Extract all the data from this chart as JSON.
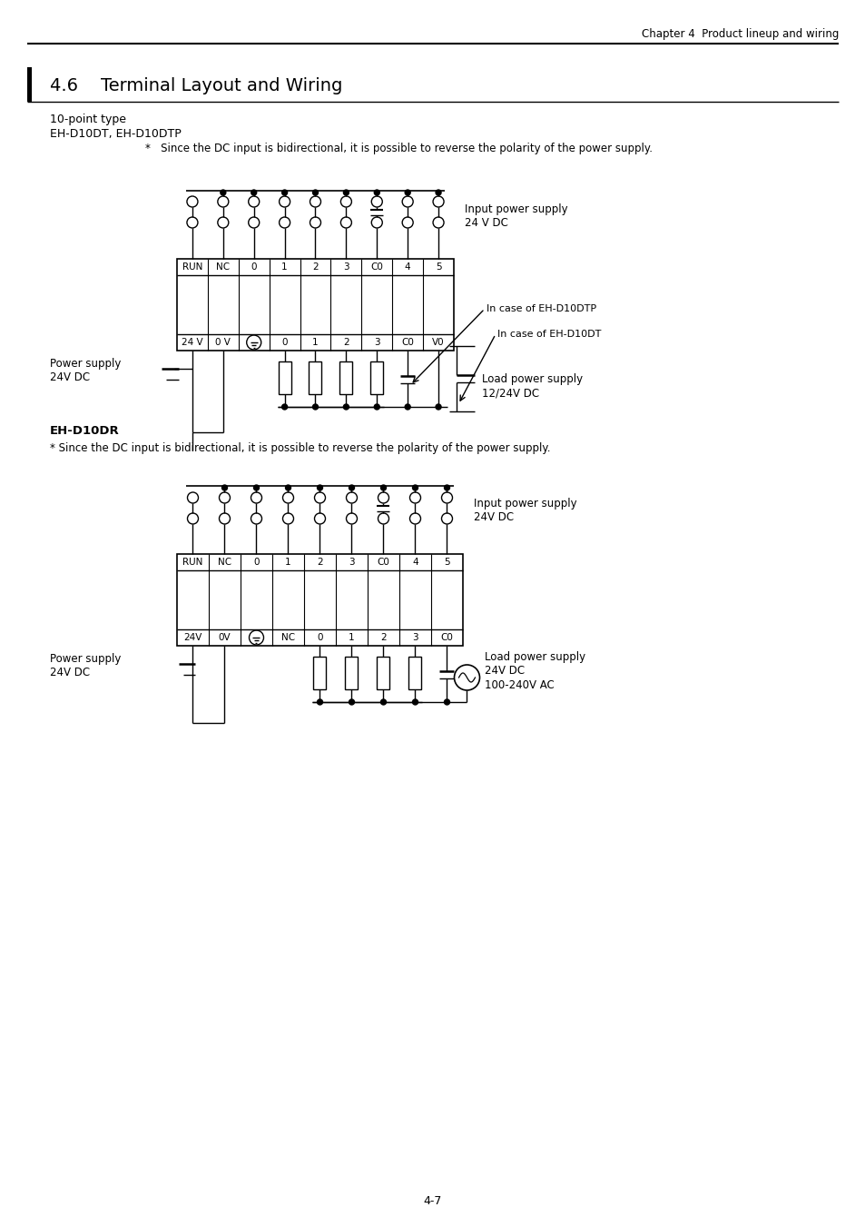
{
  "page_header": "Chapter 4  Product lineup and wiring",
  "section_title": "4.6    Terminal Layout and Wiring",
  "subsection1_title": "10-point type",
  "subsection1_model": "EH-D10DT, EH-D10DTP",
  "subsection1_note": "*   Since the DC input is bidirectional, it is possible to reverse the polarity of the power supply.",
  "diagram1_top_labels": [
    "RUN",
    "NC",
    "0",
    "1",
    "2",
    "3",
    "C0",
    "4",
    "5"
  ],
  "diagram1_bot_labels": [
    "24 V",
    "0 V",
    "",
    "0",
    "1",
    "2",
    "3",
    "C0",
    "V0"
  ],
  "diagram1_input_label": "Input power supply\n24 V DC",
  "diagram1_incase_dtp": "In case of EH-D10DTP",
  "diagram1_incase_dt": "In case of EH-D10DT",
  "diagram1_power_label": "Power supply\n24V DC",
  "diagram1_load_label": "Load power supply\n12/24V DC",
  "subsection2_title": "EH-D10DR",
  "subsection2_note": "* Since the DC input is bidirectional, it is possible to reverse the polarity of the power supply.",
  "diagram2_top_labels": [
    "RUN",
    "NC",
    "0",
    "1",
    "2",
    "3",
    "C0",
    "4",
    "5"
  ],
  "diagram2_bot_labels": [
    "24V",
    "0V",
    "",
    "NC",
    "0",
    "1",
    "2",
    "3",
    "C0"
  ],
  "diagram2_input_label": "Input power supply\n24V DC",
  "diagram2_power_label": "Power supply\n24V DC",
  "diagram2_load_label": "Load power supply\n24V DC\n100-240V AC",
  "page_number": "4-7",
  "bg_color": "#ffffff",
  "line_color": "#000000",
  "text_color": "#000000"
}
